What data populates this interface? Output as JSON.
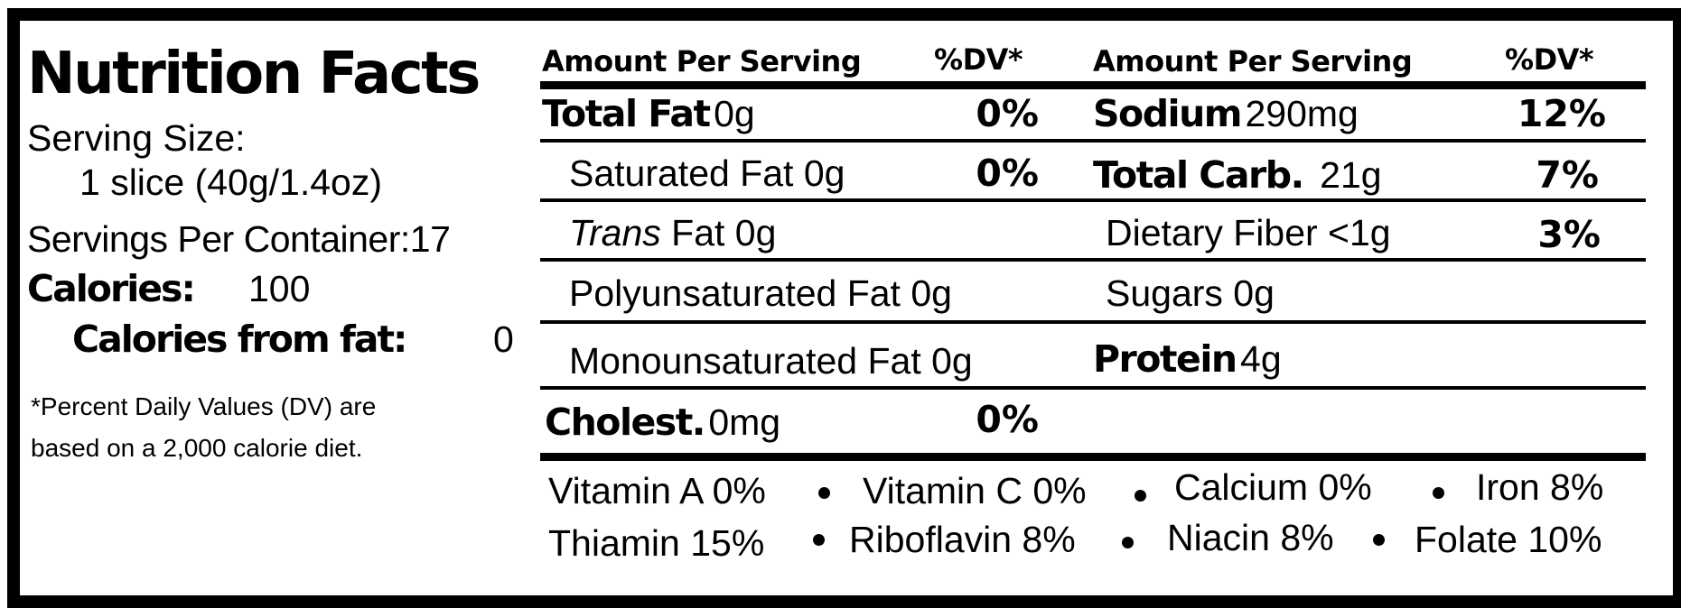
{
  "title": "Nutrition Facts",
  "serving_size_label": "Serving Size:",
  "serving_size_value": "1 slice (40g/1.4oz)",
  "servings_per_container": "Servings Per Container:17",
  "calories_label": "Calories:",
  "calories_value": "100",
  "calories_from_fat_label": "Calories from fat:",
  "calories_from_fat_value": "0",
  "footnote_line1": "*Percent Daily Values (DV) are",
  "footnote_line2": "based on a 2,000 calorie diet.",
  "headers": {
    "amount_left": "Amount Per Serving",
    "dv_left": "%DV*",
    "amount_right": "Amount Per Serving",
    "dv_right": "%DV*"
  },
  "left_rows": [
    {
      "label": "Total Fat",
      "amount": "0g",
      "dv": "0%"
    },
    {
      "label": "Saturated Fat 0g",
      "dv": "0%"
    },
    {
      "label_italic": "Trans",
      "label": "Fat 0g"
    },
    {
      "label": "Polyunsaturated Fat 0g"
    },
    {
      "label": "Monounsaturated Fat 0g"
    },
    {
      "label": "Cholest.",
      "amount": "0mg",
      "dv": "0%"
    }
  ],
  "right_rows": [
    {
      "label": "Sodium",
      "amount": "290mg",
      "dv": "12%"
    },
    {
      "label": "Total Carb.",
      "amount": "21g",
      "dv": "7%"
    },
    {
      "label": "Dietary Fiber <1g",
      "dv": "3%"
    },
    {
      "label": "Sugars 0g"
    },
    {
      "label": "Protein",
      "amount": "4g"
    }
  ],
  "vitamins_row1": [
    "Vitamin A 0%",
    "Vitamin C 0%",
    "Calcium 0%",
    "Iron 8%"
  ],
  "vitamins_row2": [
    "Thiamin 15%",
    "Riboflavin 8%",
    "Niacin 8%",
    "Folate 10%"
  ]
}
